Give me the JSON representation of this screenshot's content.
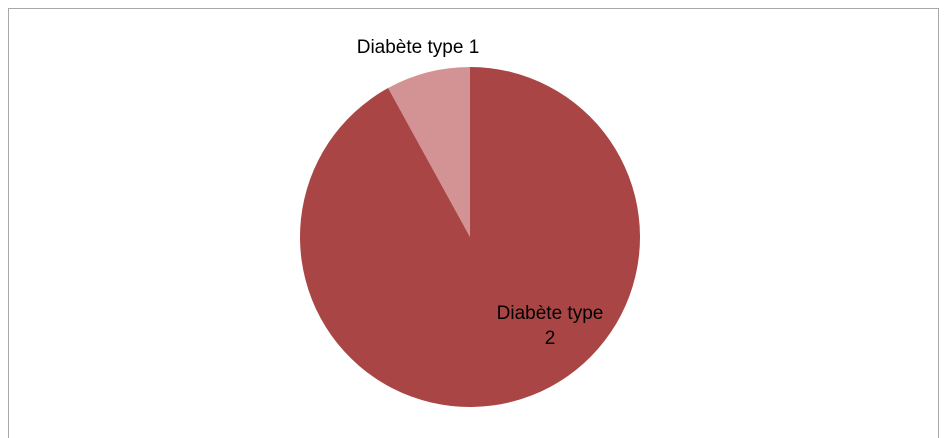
{
  "chart_data": {
    "type": "pie",
    "title": "",
    "legend": "none",
    "slices": [
      {
        "label": "Diabète type 1",
        "label_lines": [
          "Diabète type 1"
        ],
        "value": 8,
        "color": "#d39394"
      },
      {
        "label": "Diabète type 2",
        "label_lines": [
          "Diabète type",
          "2"
        ],
        "value": 92,
        "color": "#a94645"
      }
    ]
  }
}
